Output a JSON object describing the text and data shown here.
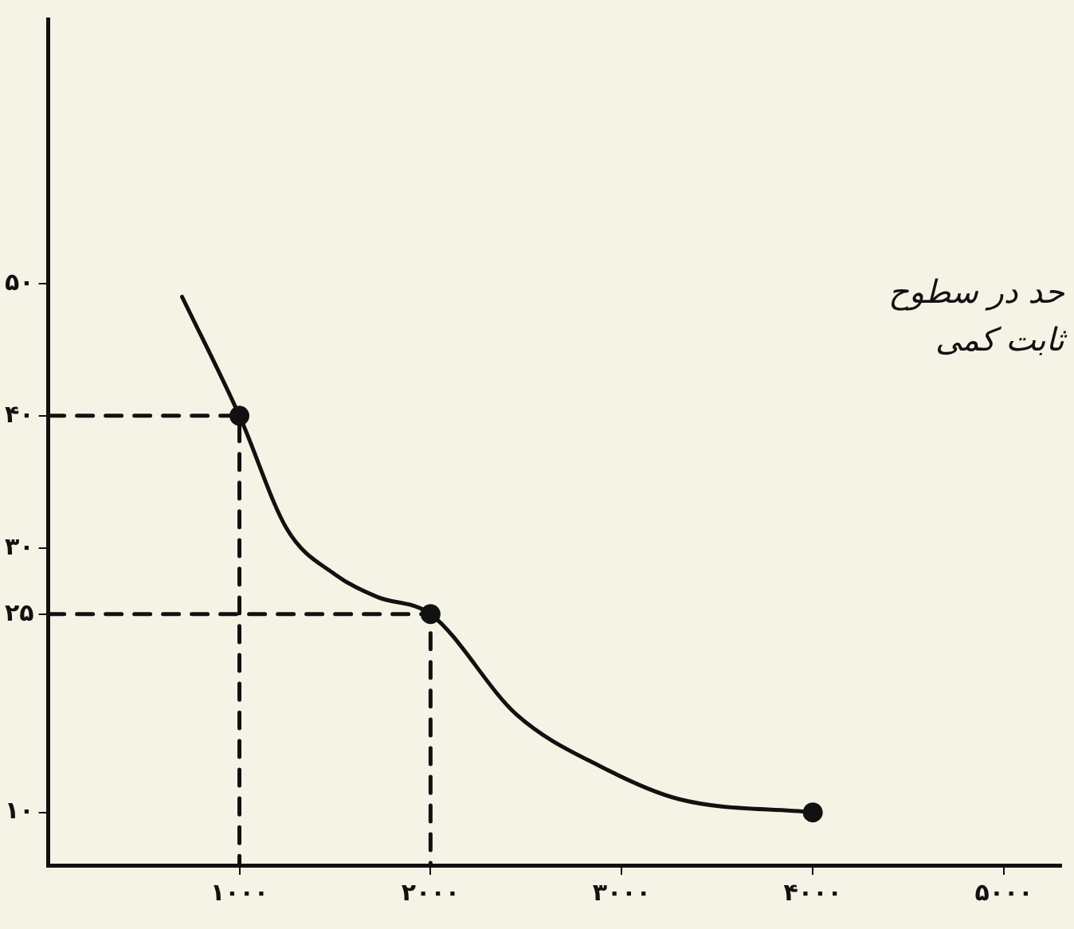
{
  "chart_data": {
    "type": "line",
    "x": [
      700,
      1000,
      1250,
      1500,
      1720,
      2000,
      2450,
      2900,
      3300,
      4000
    ],
    "series": [
      {
        "color": "#111111",
        "marker": "none",
        "line_style": "solid",
        "values": [
          49,
          40,
          31.4,
          28,
          26.3,
          25,
          17.4,
          13.4,
          11,
          10
        ]
      },
      {
        "type": "scatter",
        "color": "#111111",
        "marker": "circle",
        "x": [
          1000,
          2000,
          4000
        ],
        "values": [
          40,
          25,
          10
        ]
      },
      {
        "type": "line",
        "color": "#111111",
        "marker": "none",
        "line_style": "dashed",
        "x": [
          0,
          1000,
          1000
        ],
        "values": [
          40,
          40,
          6
        ]
      },
      {
        "type": "line",
        "color": "#111111",
        "marker": "none",
        "line_style": "dashed",
        "x": [
          0,
          2000,
          2000
        ],
        "values": [
          25,
          25,
          6
        ]
      }
    ],
    "xlim": [
      0,
      5300
    ],
    "ylim": [
      6,
      70
    ],
    "xticks": [
      {
        "value": 1000,
        "label": "۱۰۰۰"
      },
      {
        "value": 2000,
        "label": "۲۰۰۰"
      },
      {
        "value": 3000,
        "label": "۳۰۰۰"
      },
      {
        "value": 4000,
        "label": "۴۰۰۰"
      },
      {
        "value": 5000,
        "label": "۵۰۰۰"
      }
    ],
    "yticks": [
      {
        "value": 10,
        "label": "۱۰"
      },
      {
        "value": 25,
        "label": "۲۵"
      },
      {
        "value": 30,
        "label": "۳۰"
      },
      {
        "value": 40,
        "label": "۴۰"
      },
      {
        "value": 50,
        "label": "۵۰"
      }
    ],
    "annotations": [
      "حد در سطوح",
      "ثابت کمی"
    ],
    "grid": false,
    "legend": false
  }
}
